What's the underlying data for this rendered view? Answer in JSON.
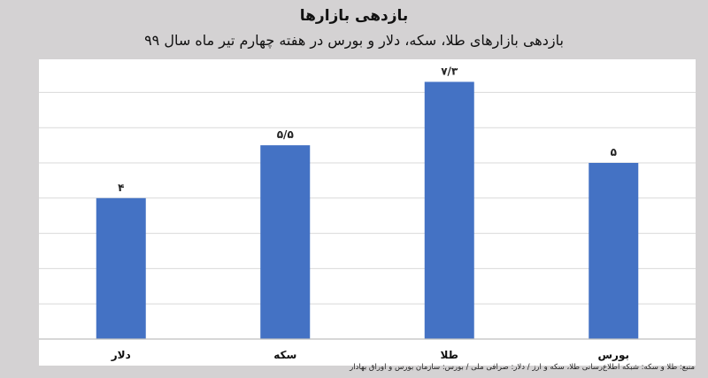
{
  "header": {
    "title": "بازدهی بازارها",
    "subtitle": "بازدهی بازارهای طلا، سکه، دلار و بورس در هفته چهارم تیر ماه سال ۹۹"
  },
  "footer": {
    "source": "منبع: طلا و سکه: شبکه اطلاع‌رسانی طلا، سکه و ارز / دلار: صرافی ملی / بورس: سازمان بورس و اوراق بهادار"
  },
  "chart_data": {
    "type": "bar",
    "title": "بازدهی بازارها",
    "subtitle": "بازدهی بازارهای طلا، سکه، دلار و بورس در هفته چهارم تیر ماه سال ۹۹",
    "categories": [
      "دلار",
      "سکه",
      "طلا",
      "بورس"
    ],
    "values": [
      4,
      5.5,
      7.3,
      5
    ],
    "data_labels": [
      "۴",
      "۵/۵",
      "۷/۳",
      "۵"
    ],
    "ylim": [
      0,
      8
    ],
    "grid": true,
    "bar_color": "#4472c4"
  }
}
